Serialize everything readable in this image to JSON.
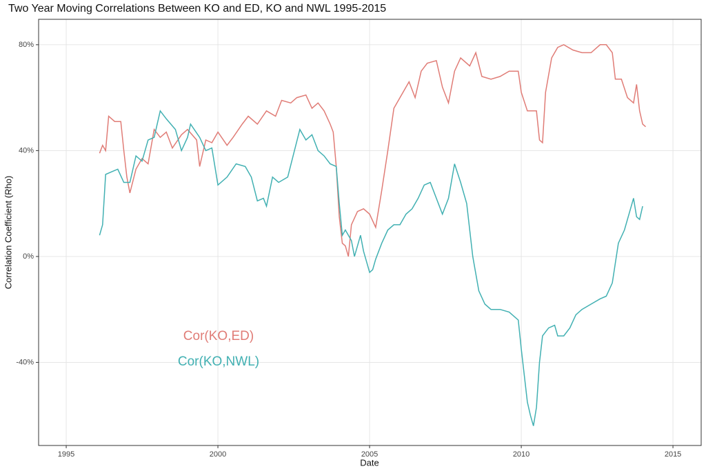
{
  "chart_data": {
    "type": "line",
    "title": "Two Year Moving Correlations Between KO and ED, KO and NWL 1995-2015",
    "xlabel": "Date",
    "ylabel": "Correlation Coefficient (Rho)",
    "xlim": [
      1994.09,
      2015.93
    ],
    "ylim": [
      -71.4,
      89.6
    ],
    "xticks": [
      1995,
      2000,
      2005,
      2010,
      2015
    ],
    "yticks": [
      {
        "value": -40,
        "label": "-40%"
      },
      {
        "value": 0,
        "label": "0%"
      },
      {
        "value": 40,
        "label": "40%"
      },
      {
        "value": 80,
        "label": "80%"
      }
    ],
    "grid": true,
    "series": [
      {
        "name": "Cor(KO,ED)",
        "color": "#e07c76",
        "x": [
          1996.1,
          1996.2,
          1996.3,
          1996.4,
          1996.6,
          1996.8,
          1996.9,
          1997.0,
          1997.1,
          1997.3,
          1997.5,
          1997.7,
          1997.9,
          1998.1,
          1998.3,
          1998.5,
          1998.8,
          1999.0,
          1999.3,
          1999.4,
          1999.6,
          1999.8,
          2000.0,
          2000.3,
          2000.5,
          2000.8,
          2001.0,
          2001.3,
          2001.6,
          2001.9,
          2002.1,
          2002.4,
          2002.6,
          2002.9,
          2003.1,
          2003.3,
          2003.5,
          2003.7,
          2003.8,
          2003.9,
          2004.0,
          2004.1,
          2004.2,
          2004.3,
          2004.4,
          2004.6,
          2004.8,
          2005.0,
          2005.2,
          2005.4,
          2005.6,
          2005.8,
          2006.0,
          2006.3,
          2006.5,
          2006.7,
          2006.9,
          2007.2,
          2007.4,
          2007.6,
          2007.8,
          2008.0,
          2008.3,
          2008.5,
          2008.7,
          2009.0,
          2009.3,
          2009.6,
          2009.9,
          2010.0,
          2010.2,
          2010.5,
          2010.6,
          2010.7,
          2010.8,
          2011.0,
          2011.2,
          2011.4,
          2011.7,
          2012.0,
          2012.3,
          2012.6,
          2012.8,
          2013.0,
          2013.1,
          2013.3,
          2013.5,
          2013.7,
          2013.8,
          2013.9,
          2014.0,
          2014.1
        ],
        "values": [
          39,
          42,
          40,
          53,
          51,
          51,
          40,
          30,
          24,
          33,
          37,
          35,
          48,
          45,
          47,
          41,
          46,
          48,
          44,
          34,
          44,
          43,
          47,
          42,
          45,
          50,
          53,
          50,
          55,
          53,
          59,
          58,
          60,
          61,
          56,
          58,
          55,
          50,
          47,
          34,
          15,
          5,
          4,
          0,
          12,
          17,
          18,
          16,
          11,
          25,
          40,
          56,
          60,
          66,
          60,
          70,
          73,
          74,
          64,
          58,
          70,
          75,
          72,
          77,
          68,
          67,
          68,
          70,
          70,
          62,
          55,
          55,
          44,
          43,
          62,
          75,
          79,
          80,
          78,
          77,
          77,
          80,
          80,
          77,
          67,
          67,
          60,
          58,
          65,
          55,
          50,
          49
        ]
      },
      {
        "name": "Cor(KO,NWL)",
        "color": "#41b0b2",
        "x": [
          1996.1,
          1996.2,
          1996.3,
          1996.5,
          1996.7,
          1996.9,
          1997.1,
          1997.3,
          1997.5,
          1997.7,
          1997.9,
          1998.1,
          1998.3,
          1998.6,
          1998.8,
          1999.0,
          1999.1,
          1999.4,
          1999.6,
          1999.8,
          2000.0,
          2000.3,
          2000.6,
          2000.9,
          2001.1,
          2001.3,
          2001.5,
          2001.6,
          2001.8,
          2002.0,
          2002.3,
          2002.5,
          2002.7,
          2002.9,
          2003.1,
          2003.3,
          2003.5,
          2003.7,
          2003.9,
          2004.0,
          2004.1,
          2004.2,
          2004.4,
          2004.5,
          2004.7,
          2004.8,
          2005.0,
          2005.1,
          2005.2,
          2005.4,
          2005.6,
          2005.8,
          2006.0,
          2006.2,
          2006.4,
          2006.6,
          2006.8,
          2007.0,
          2007.2,
          2007.4,
          2007.6,
          2007.8,
          2008.0,
          2008.2,
          2008.4,
          2008.6,
          2008.8,
          2009.0,
          2009.3,
          2009.6,
          2009.9,
          2010.0,
          2010.1,
          2010.2,
          2010.3,
          2010.4,
          2010.5,
          2010.6,
          2010.7,
          2010.9,
          2011.1,
          2011.2,
          2011.4,
          2011.6,
          2011.8,
          2012.0,
          2012.3,
          2012.6,
          2012.8,
          2013.0,
          2013.2,
          2013.4,
          2013.6,
          2013.7,
          2013.8,
          2013.9,
          2014.0
        ],
        "values": [
          8,
          12,
          31,
          32,
          33,
          28,
          28,
          38,
          36,
          44,
          45,
          55,
          52,
          48,
          40,
          45,
          50,
          45,
          40,
          41,
          27,
          30,
          35,
          34,
          30,
          21,
          22,
          19,
          30,
          28,
          30,
          39,
          48,
          44,
          46,
          40,
          38,
          35,
          34,
          20,
          8,
          10,
          6,
          0,
          8,
          2,
          -6,
          -5,
          -1,
          5,
          10,
          12,
          12,
          16,
          18,
          22,
          27,
          28,
          22,
          16,
          22,
          35,
          28,
          20,
          0,
          -13,
          -18,
          -20,
          -20,
          -21,
          -24,
          -35,
          -45,
          -55,
          -60,
          -64,
          -57,
          -40,
          -30,
          -27,
          -26,
          -30,
          -30,
          -27,
          -22,
          -20,
          -18,
          -16,
          -15,
          -10,
          5,
          10,
          18,
          22,
          15,
          14,
          19
        ]
      }
    ]
  }
}
